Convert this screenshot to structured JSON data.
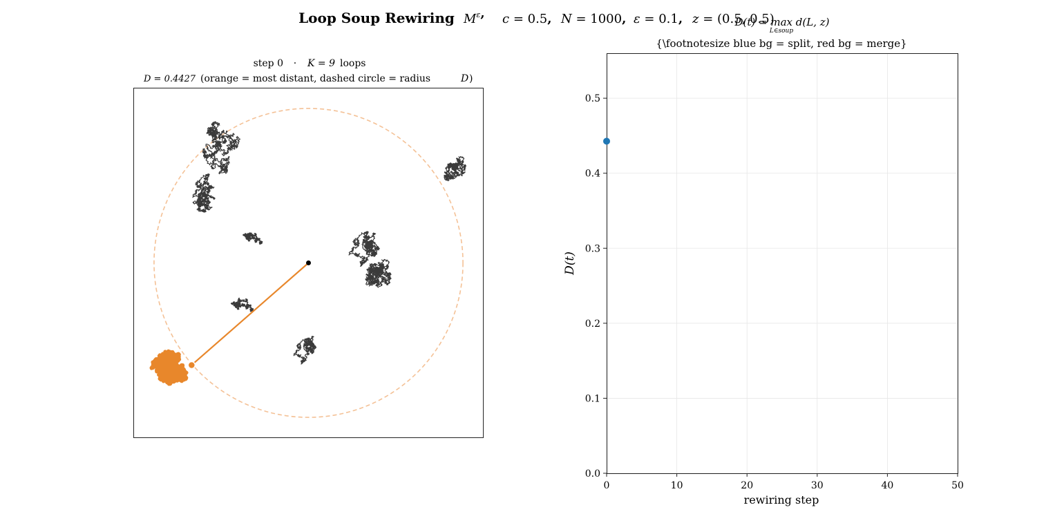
{
  "figure": {
    "suptitle_bold": "Loop Soup Rewiring",
    "suptitle_params": [
      {
        "sym": "M",
        "sup": "ε",
        "suffix": ","
      },
      {
        "sym": "c",
        "eq": "0.5",
        "suffix": ","
      },
      {
        "sym": "N",
        "eq": "1000",
        "suffix": ","
      },
      {
        "sym": "ε",
        "eq": "0.1",
        "suffix": ","
      },
      {
        "sym": "z",
        "eq": "(0.5, 0.5)",
        "suffix": ""
      }
    ]
  },
  "chart_data": [
    {
      "type": "scatter",
      "panel": "loop-soup",
      "title_line1": {
        "step": "step 0",
        "sep": "·",
        "loops": "K = 9",
        "loops_suffix": "loops"
      },
      "title_line2": {
        "D": "D = 0.4427",
        "note": "(orange = most distant,  dashed circle = radius ",
        "note_var": "D",
        "note_end": ")"
      },
      "xlim": [
        0,
        1
      ],
      "ylim": [
        0,
        1
      ],
      "center": [
        0.5,
        0.5
      ],
      "radius": 0.4427,
      "farthest_point": [
        0.165,
        0.207
      ],
      "colors": {
        "loop": "#3a3a3a",
        "highlight": "#e8872b",
        "circle": "#f4c196",
        "center": "#000000"
      },
      "loops": [
        {
          "c": [
            0.25,
            0.83
          ],
          "s": 0.075,
          "highlight": false
        },
        {
          "c": [
            0.2,
            0.7
          ],
          "s": 0.055,
          "highlight": false
        },
        {
          "c": [
            0.92,
            0.77
          ],
          "s": 0.035,
          "highlight": false
        },
        {
          "c": [
            0.34,
            0.57
          ],
          "s": 0.028,
          "highlight": false
        },
        {
          "c": [
            0.66,
            0.54
          ],
          "s": 0.05,
          "highlight": false
        },
        {
          "c": [
            0.7,
            0.47
          ],
          "s": 0.04,
          "highlight": false
        },
        {
          "c": [
            0.31,
            0.38
          ],
          "s": 0.032,
          "highlight": false
        },
        {
          "c": [
            0.49,
            0.25
          ],
          "s": 0.04,
          "highlight": false
        },
        {
          "c": [
            0.1,
            0.2
          ],
          "s": 0.05,
          "highlight": true
        }
      ]
    },
    {
      "type": "line",
      "panel": "D-vs-step",
      "title_top": "D(t) = max d(L, z)",
      "title_top_sub": "L∈soup",
      "title": "{\\footnotesize blue bg = split,  red bg = merge}",
      "xlabel": "rewiring step",
      "ylabel": "D(t)",
      "xlim": [
        0,
        50
      ],
      "ylim": [
        0,
        0.56
      ],
      "xticks": [
        0,
        10,
        20,
        30,
        40,
        50
      ],
      "yticks": [
        0.0,
        0.1,
        0.2,
        0.3,
        0.4,
        0.5
      ],
      "xtick_labels": [
        "0",
        "10",
        "20",
        "30",
        "40",
        "50"
      ],
      "ytick_labels": [
        "0.0",
        "0.1",
        "0.2",
        "0.3",
        "0.4",
        "0.5"
      ],
      "grid": true,
      "series": [
        {
          "x": [
            0
          ],
          "y": [
            0.4427
          ],
          "color": "#1f77b4"
        }
      ]
    }
  ]
}
